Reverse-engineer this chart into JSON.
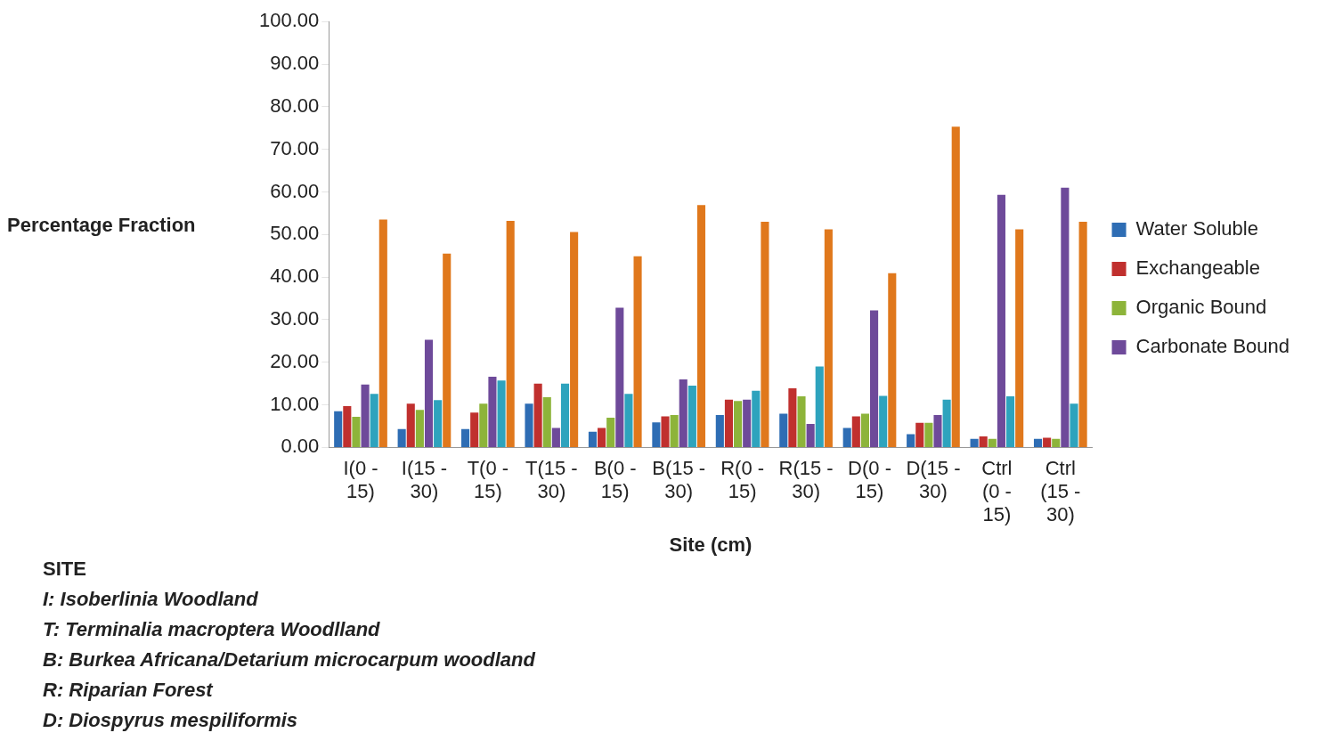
{
  "chart_data": {
    "type": "bar",
    "xlabel": "Site (cm)",
    "ylabel": "Percentage Fraction",
    "categories": [
      "I(0 - 15)",
      "I(15 - 30)",
      "T(0 - 15)",
      "T(15 - 30)",
      "B(0 - 15)",
      "B(15 - 30)",
      "R(0 - 15)",
      "R(15 - 30)",
      "D(0 - 15)",
      "D(15 - 30)",
      "Ctrl (0 - 15)",
      "Ctrl (15 - 30)"
    ],
    "series": [
      {
        "name": "Water Soluble",
        "color": "#2e6db4",
        "values": [
          8.5,
          4.3,
          4.3,
          10.3,
          3.7,
          5.9,
          7.6,
          7.9,
          4.6,
          3.1,
          2.0,
          2.0
        ]
      },
      {
        "name": "Exchangeable",
        "color": "#c0302e",
        "values": [
          9.7,
          10.3,
          8.2,
          15.0,
          4.6,
          7.3,
          11.2,
          13.9,
          7.3,
          5.8,
          2.6,
          2.3
        ]
      },
      {
        "name": "Organic Bound",
        "color": "#8db43a",
        "values": [
          7.2,
          8.8,
          10.3,
          11.8,
          7.0,
          7.6,
          10.9,
          12.0,
          7.9,
          5.8,
          2.0,
          2.0
        ]
      },
      {
        "name": "Carbonate Bound",
        "color": "#6e4a9a",
        "values": [
          14.8,
          25.3,
          16.6,
          4.6,
          32.8,
          16.0,
          11.2,
          5.5,
          32.2,
          7.6,
          59.3,
          61.0
        ]
      },
      {
        "color": "#2ea3bd",
        "values": [
          12.6,
          11.1,
          15.7,
          15.0,
          12.6,
          14.5,
          13.3,
          19.0,
          12.1,
          11.2,
          12.0,
          10.3
        ]
      },
      {
        "color": "#e0781c",
        "values": [
          53.5,
          45.5,
          53.2,
          50.6,
          44.9,
          56.9,
          53.0,
          51.2,
          40.9,
          75.3,
          51.2,
          53.0
        ]
      }
    ],
    "ylim": [
      0,
      100
    ],
    "yticks": [
      {
        "value": 0,
        "label": "0.00"
      },
      {
        "value": 10,
        "label": "10.00"
      },
      {
        "value": 20,
        "label": "20.00"
      },
      {
        "value": 30,
        "label": "30.00"
      },
      {
        "value": 40,
        "label": "40.00"
      },
      {
        "value": 50,
        "label": "50.00"
      },
      {
        "value": 60,
        "label": "60.00"
      },
      {
        "value": 70,
        "label": "70.00"
      },
      {
        "value": 80,
        "label": "80.00"
      },
      {
        "value": 90,
        "label": "90.00"
      },
      {
        "value": 100,
        "label": "100.00"
      }
    ],
    "grid": false,
    "legend": "right",
    "annotations": [
      "SITE",
      "I: Isoberlinia Woodland",
      "T: Terminalia macroptera Woodlland",
      "B: Burkea Africana/Detarium microcarpum woodland",
      "R: Riparian Forest",
      "D: Diospyrus mespiliformis"
    ]
  }
}
